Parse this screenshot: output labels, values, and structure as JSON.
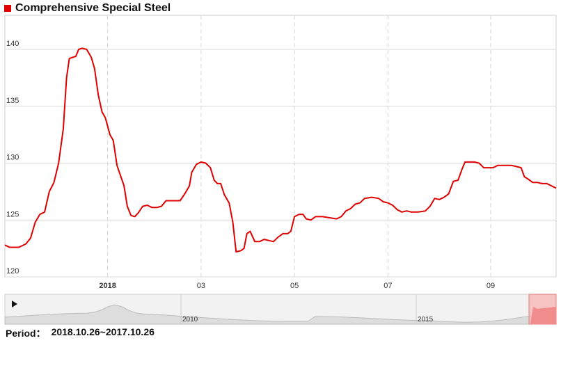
{
  "title": "Comprehensive Special Steel",
  "period": {
    "label": "Period：",
    "range": "2018.10.26~2017.10.26"
  },
  "colors": {
    "line": "#e00000",
    "grid": "#d8d8d8",
    "navigator_fill": "#dddddd",
    "navigator_selection": "#f7b5b5"
  },
  "navigator": {
    "labels": [
      "2010",
      "2015"
    ],
    "play_icon": "play-icon"
  },
  "chart_data": {
    "type": "line",
    "title": "Comprehensive Special Steel",
    "ylim": [
      120,
      143
    ],
    "y_ticks": [
      120,
      125,
      130,
      135,
      140
    ],
    "x_tick_labels": [
      {
        "label": "2018",
        "month_index": 2.2,
        "bold": true
      },
      {
        "label": "03",
        "month_index": 4.2,
        "bold": false
      },
      {
        "label": "05",
        "month_index": 6.2,
        "bold": false
      },
      {
        "label": "07",
        "month_index": 8.2,
        "bold": false
      },
      {
        "label": "09",
        "month_index": 10.4,
        "bold": false
      }
    ],
    "x_range": [
      0,
      11.8
    ],
    "grid": true,
    "series": [
      {
        "values": [
          [
            0.0,
            122.8
          ],
          [
            0.1,
            122.6
          ],
          [
            0.3,
            122.6
          ],
          [
            0.45,
            122.9
          ],
          [
            0.55,
            123.4
          ],
          [
            0.65,
            124.8
          ],
          [
            0.75,
            125.5
          ],
          [
            0.85,
            125.7
          ],
          [
            0.95,
            127.5
          ],
          [
            1.05,
            128.3
          ],
          [
            1.15,
            130.0
          ],
          [
            1.25,
            133.0
          ],
          [
            1.32,
            137.5
          ],
          [
            1.38,
            139.2
          ],
          [
            1.45,
            139.3
          ],
          [
            1.52,
            139.4
          ],
          [
            1.58,
            140.0
          ],
          [
            1.65,
            140.1
          ],
          [
            1.75,
            140.0
          ],
          [
            1.85,
            139.3
          ],
          [
            1.92,
            138.3
          ],
          [
            2.0,
            136.0
          ],
          [
            2.08,
            134.5
          ],
          [
            2.15,
            134.0
          ],
          [
            2.25,
            132.5
          ],
          [
            2.32,
            132.0
          ],
          [
            2.4,
            129.8
          ],
          [
            2.55,
            128.0
          ],
          [
            2.62,
            126.2
          ],
          [
            2.7,
            125.4
          ],
          [
            2.78,
            125.3
          ],
          [
            2.85,
            125.6
          ],
          [
            2.95,
            126.2
          ],
          [
            3.05,
            126.3
          ],
          [
            3.15,
            126.1
          ],
          [
            3.25,
            126.1
          ],
          [
            3.35,
            126.2
          ],
          [
            3.45,
            126.7
          ],
          [
            3.6,
            126.7
          ],
          [
            3.75,
            126.7
          ],
          [
            3.85,
            127.3
          ],
          [
            3.95,
            128.0
          ],
          [
            4.0,
            129.2
          ],
          [
            4.1,
            129.9
          ],
          [
            4.2,
            130.1
          ],
          [
            4.3,
            130.0
          ],
          [
            4.4,
            129.6
          ],
          [
            4.48,
            128.5
          ],
          [
            4.55,
            128.2
          ],
          [
            4.62,
            128.2
          ],
          [
            4.7,
            127.2
          ],
          [
            4.8,
            126.5
          ],
          [
            4.88,
            124.8
          ],
          [
            4.95,
            122.2
          ],
          [
            5.05,
            122.3
          ],
          [
            5.12,
            122.5
          ],
          [
            5.18,
            123.8
          ],
          [
            5.25,
            124.0
          ],
          [
            5.35,
            123.1
          ],
          [
            5.45,
            123.1
          ],
          [
            5.55,
            123.3
          ],
          [
            5.65,
            123.2
          ],
          [
            5.75,
            123.1
          ],
          [
            5.85,
            123.5
          ],
          [
            5.95,
            123.8
          ],
          [
            6.05,
            123.8
          ],
          [
            6.12,
            124.0
          ],
          [
            6.2,
            125.3
          ],
          [
            6.3,
            125.5
          ],
          [
            6.38,
            125.5
          ],
          [
            6.45,
            125.1
          ],
          [
            6.55,
            125.0
          ],
          [
            6.65,
            125.3
          ],
          [
            6.8,
            125.3
          ],
          [
            6.95,
            125.2
          ],
          [
            7.1,
            125.1
          ],
          [
            7.2,
            125.3
          ],
          [
            7.3,
            125.8
          ],
          [
            7.4,
            126.0
          ],
          [
            7.5,
            126.4
          ],
          [
            7.6,
            126.5
          ],
          [
            7.7,
            126.9
          ],
          [
            7.85,
            127.0
          ],
          [
            8.0,
            126.9
          ],
          [
            8.1,
            126.6
          ],
          [
            8.2,
            126.5
          ],
          [
            8.3,
            126.3
          ],
          [
            8.4,
            125.9
          ],
          [
            8.5,
            125.7
          ],
          [
            8.6,
            125.8
          ],
          [
            8.7,
            125.7
          ],
          [
            8.85,
            125.7
          ],
          [
            9.0,
            125.8
          ],
          [
            9.1,
            126.2
          ],
          [
            9.2,
            126.9
          ],
          [
            9.3,
            126.8
          ],
          [
            9.4,
            127.0
          ],
          [
            9.5,
            127.3
          ],
          [
            9.6,
            128.4
          ],
          [
            9.7,
            128.5
          ],
          [
            9.78,
            129.4
          ],
          [
            9.85,
            130.1
          ],
          [
            9.95,
            130.1
          ],
          [
            10.05,
            130.1
          ],
          [
            10.15,
            130.0
          ],
          [
            10.25,
            129.6
          ],
          [
            10.35,
            129.6
          ],
          [
            10.45,
            129.6
          ],
          [
            10.55,
            129.8
          ],
          [
            10.65,
            129.8
          ],
          [
            10.75,
            129.8
          ],
          [
            10.85,
            129.8
          ],
          [
            10.95,
            129.7
          ],
          [
            11.05,
            129.6
          ],
          [
            11.12,
            128.8
          ],
          [
            11.2,
            128.6
          ],
          [
            11.3,
            128.3
          ],
          [
            11.4,
            128.3
          ],
          [
            11.5,
            128.2
          ],
          [
            11.6,
            128.2
          ],
          [
            11.7,
            128.0
          ],
          [
            11.8,
            127.8
          ]
        ]
      }
    ]
  }
}
